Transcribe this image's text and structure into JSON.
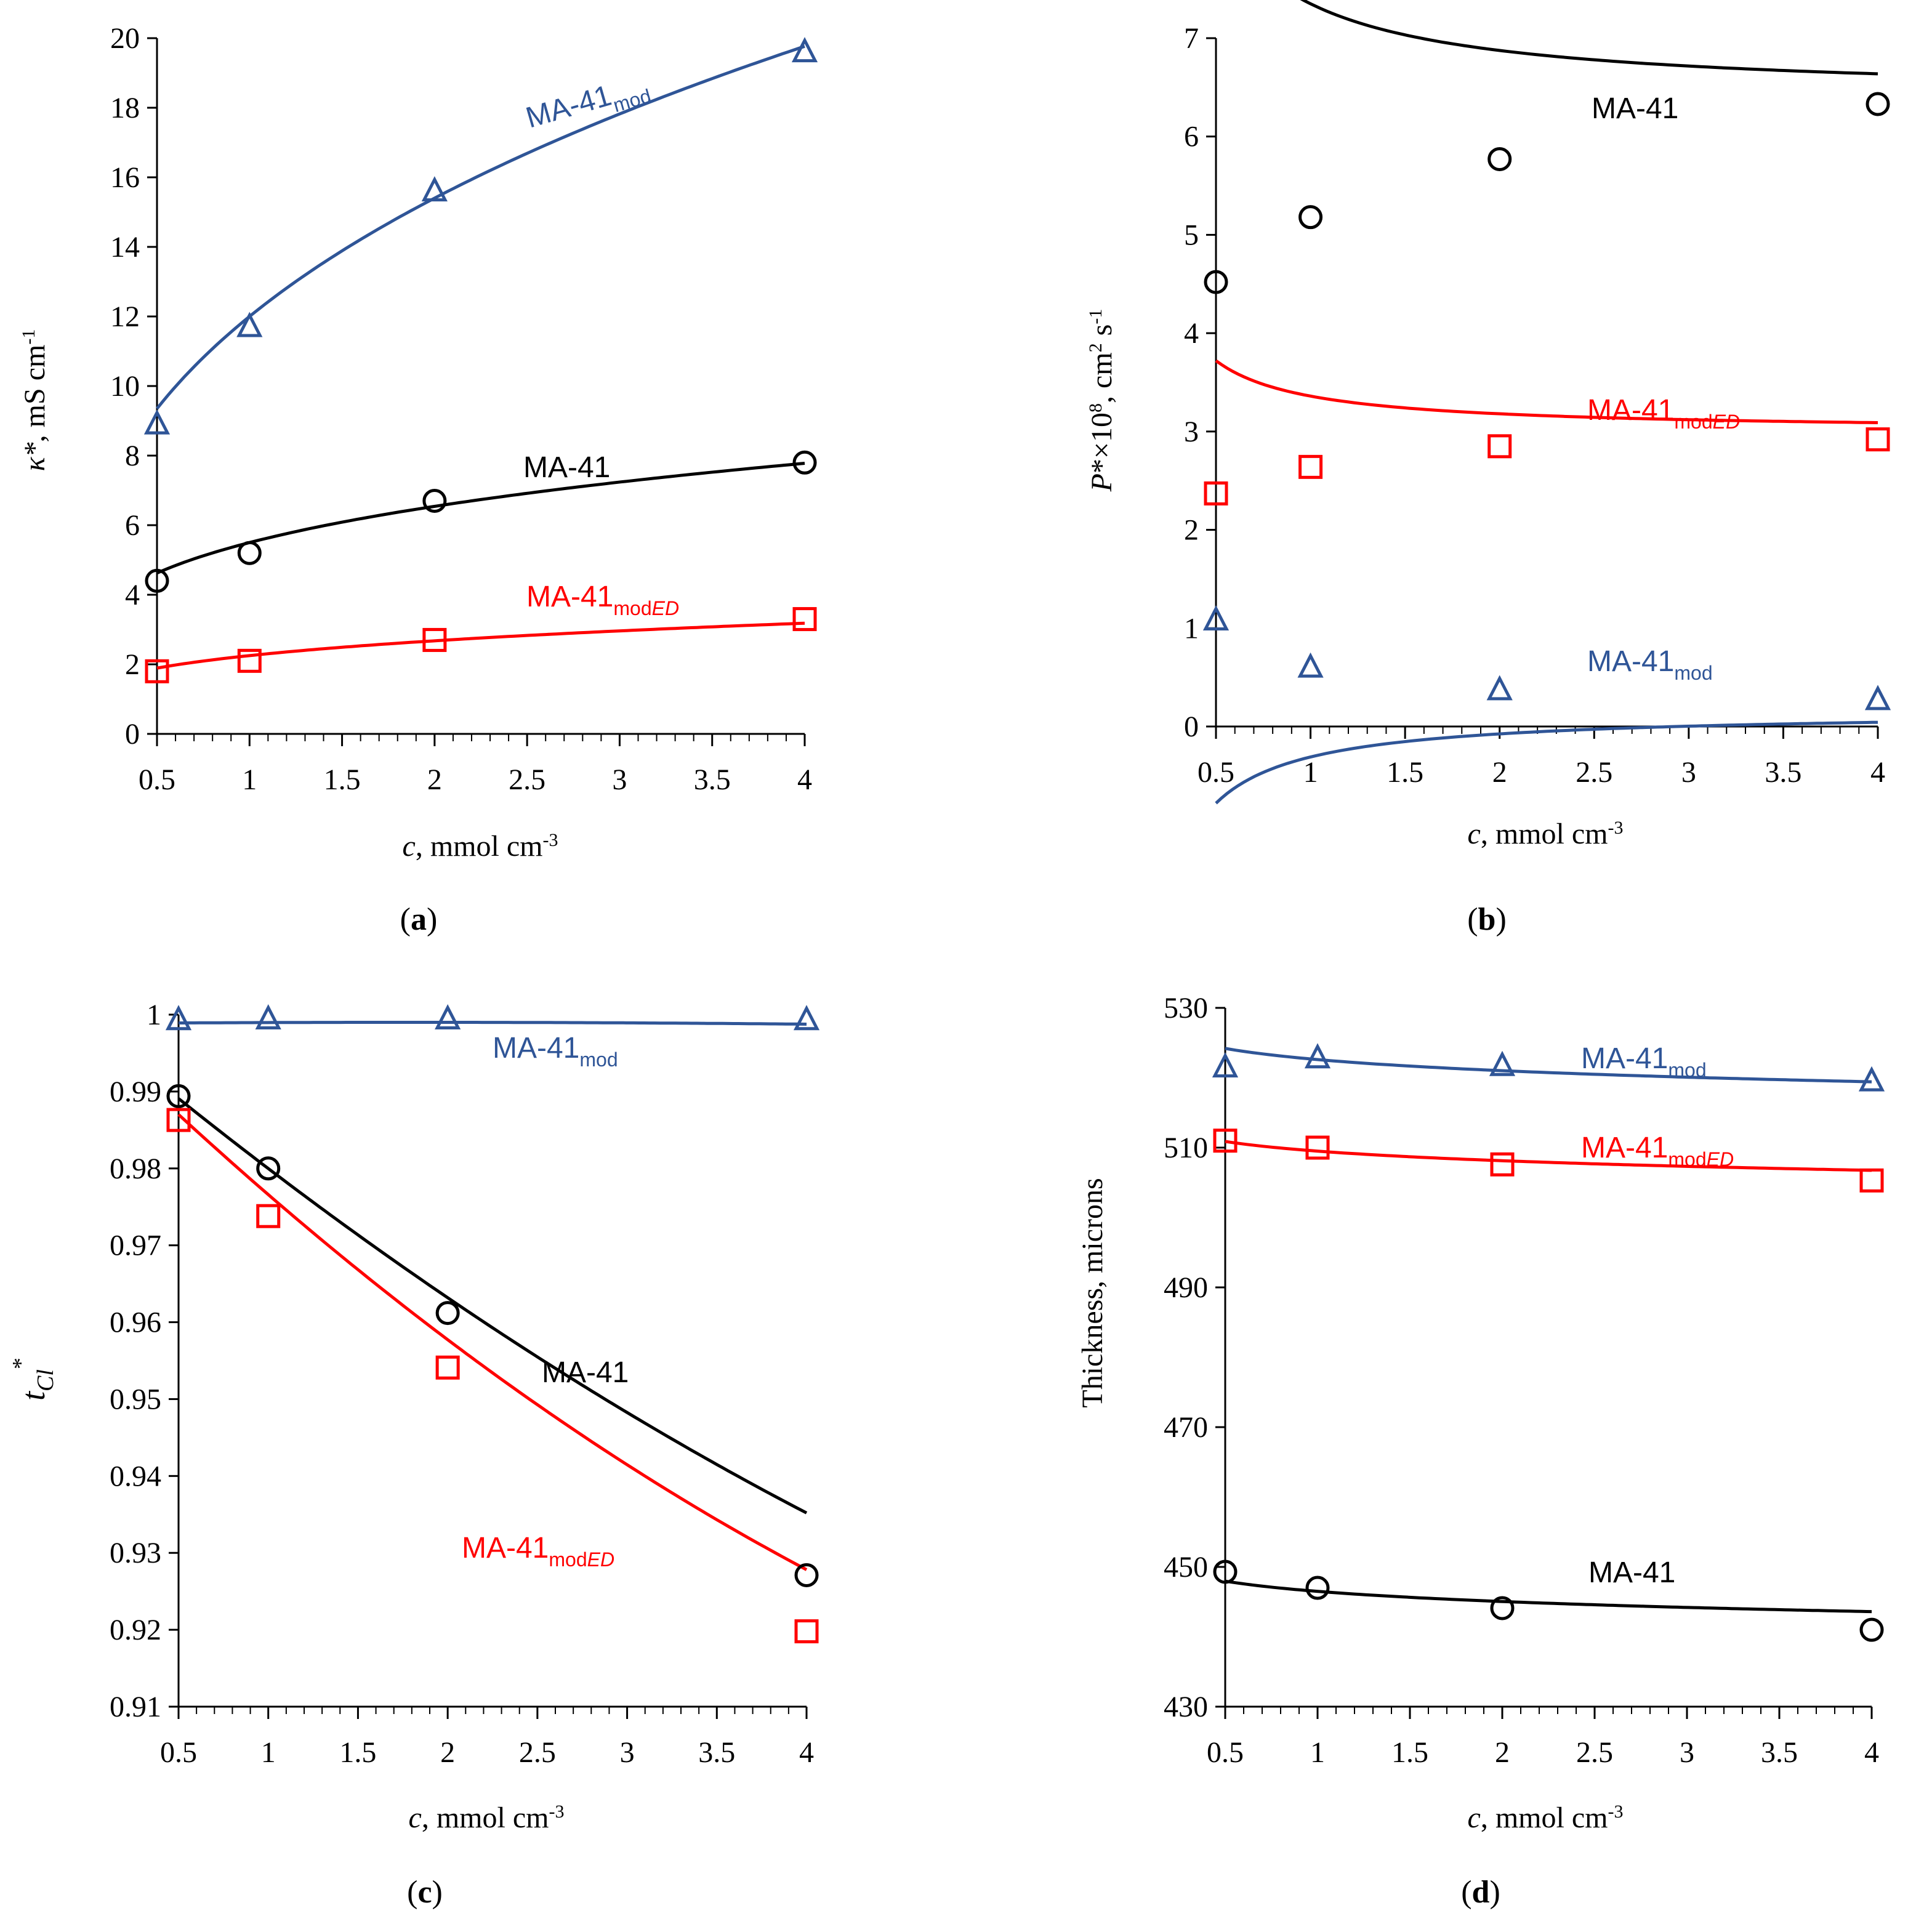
{
  "figure": {
    "series_colors": {
      "MA-41": "#000000",
      "MA-41mod": "#2f5597",
      "MA-41modED": "#ff0000"
    },
    "series_markers": {
      "MA-41": "circle",
      "MA-41mod": "triangle",
      "MA-41modED": "square"
    }
  },
  "chart_data": [
    {
      "panel": "(a)",
      "type": "scatter",
      "xlabel": "c, mmol cm-3",
      "ylabel": "κ*, mS cm-1",
      "xlim": [
        0.5,
        4
      ],
      "ylim": [
        0,
        20
      ],
      "xticks": [
        "0.5",
        "1",
        "1.5",
        "2",
        "2.5",
        "3",
        "3.5",
        "4"
      ],
      "yticks": [
        "0",
        "2",
        "4",
        "6",
        "8",
        "10",
        "12",
        "14",
        "16",
        "18",
        "20"
      ],
      "series": [
        {
          "name": "MA-41mod",
          "label_main": "MA-41",
          "label_sub": "mod",
          "label_sub_italic": "",
          "color": "#2f5597",
          "marker": "triangle",
          "x": [
            0.5,
            1,
            2,
            4
          ],
          "y": [
            8.9,
            11.7,
            15.6,
            19.6
          ],
          "fit": {
            "model": "power",
            "a": 12.0,
            "b": 0.36
          }
        },
        {
          "name": "MA-41",
          "label_main": "MA-41",
          "label_sub": "",
          "label_sub_italic": "",
          "color": "#000000",
          "marker": "circle",
          "x": [
            0.5,
            1,
            2,
            4
          ],
          "y": [
            4.4,
            5.2,
            6.7,
            7.8
          ],
          "fit": {
            "model": "power",
            "a": 5.5,
            "b": 0.25
          }
        },
        {
          "name": "MA-41modED",
          "label_main": "MA-41",
          "label_sub": "mod",
          "label_sub_italic": "ED",
          "color": "#ff0000",
          "marker": "square",
          "x": [
            0.5,
            1,
            2,
            4
          ],
          "y": [
            1.8,
            2.1,
            2.7,
            3.3
          ],
          "fit": {
            "model": "power",
            "a": 2.25,
            "b": 0.25
          }
        }
      ]
    },
    {
      "panel": "(b)",
      "type": "scatter",
      "xlabel": "c, mmol cm-3",
      "ylabel": "P*×108, cm2 s-1",
      "xlim": [
        0.5,
        4
      ],
      "ylim": [
        0,
        7
      ],
      "xticks": [
        "0.5",
        "1",
        "1.5",
        "2",
        "2.5",
        "3",
        "3.5",
        "4"
      ],
      "yticks": [
        "0",
        "1",
        "2",
        "3",
        "4",
        "5",
        "6",
        "7"
      ],
      "series": [
        {
          "name": "MA-41",
          "label_main": "MA-41",
          "label_sub": "",
          "label_sub_italic": "",
          "color": "#000000",
          "marker": "circle",
          "x": [
            0.5,
            1,
            2,
            4
          ],
          "y": [
            4.52,
            5.18,
            5.77,
            6.33
          ],
          "fit": {
            "model": "hyper",
            "A": 6.4,
            "B": 0.95
          }
        },
        {
          "name": "MA-41modED",
          "label_main": "MA-41",
          "label_sub": "mod",
          "label_sub_italic": "ED",
          "color": "#ff0000",
          "marker": "square",
          "x": [
            0.5,
            1,
            2,
            4
          ],
          "y": [
            2.37,
            2.64,
            2.85,
            2.92
          ],
          "fit": {
            "model": "hyper",
            "A": 3.0,
            "B": 0.36
          }
        },
        {
          "name": "MA-41mod",
          "label_main": "MA-41",
          "label_sub": "mod",
          "label_sub_italic": "",
          "color": "#2f5597",
          "marker": "triangle",
          "x": [
            0.5,
            1,
            2,
            4
          ],
          "y": [
            1.08,
            0.6,
            0.37,
            0.27
          ],
          "fit": {
            "model": "hyper",
            "A": 0.16,
            "B": -0.47
          }
        }
      ]
    },
    {
      "panel": "(c)",
      "type": "scatter",
      "xlabel": "c, mmol cm-3",
      "ylabel": "tCl*",
      "xlim": [
        0.5,
        4
      ],
      "ylim": [
        0.91,
        1
      ],
      "xticks": [
        "0.5",
        "1",
        "1.5",
        "2",
        "2.5",
        "3",
        "3.5",
        "4"
      ],
      "yticks": [
        "0.91",
        "0.92",
        "0.93",
        "0.94",
        "0.95",
        "0.96",
        "0.97",
        "0.98",
        "0.99",
        "1"
      ],
      "series": [
        {
          "name": "MA-41mod",
          "label_main": "MA-41",
          "label_sub": "mod",
          "label_sub_italic": "",
          "color": "#2f5597",
          "marker": "triangle",
          "x": [
            0.5,
            1,
            2,
            4
          ],
          "y": [
            0.9993,
            0.9994,
            0.9994,
            0.9993
          ],
          "fit": {
            "model": "quad",
            "c0": 0.99884,
            "c1": 0.00018,
            "c2": -5e-05
          }
        },
        {
          "name": "MA-41",
          "label_main": "MA-41",
          "label_sub": "",
          "label_sub_italic": "",
          "color": "#000000",
          "marker": "circle",
          "x": [
            0.5,
            1,
            2,
            4
          ],
          "y": [
            0.9894,
            0.98,
            0.9612,
            0.9271
          ],
          "fit": {
            "model": "quad",
            "c0": 0.99866,
            "c1": -0.01961,
            "c2": 0.000936
          }
        },
        {
          "name": "MA-41modED",
          "label_main": "MA-41",
          "label_sub": "mod",
          "label_sub_italic": "ED",
          "color": "#ff0000",
          "marker": "square",
          "x": [
            0.5,
            1,
            2,
            4
          ],
          "y": [
            0.9863,
            0.9738,
            0.9541,
            0.9198
          ],
          "fit": {
            "model": "quad",
            "c0": 0.99808,
            "c1": -0.02279,
            "c2": 0.001306
          }
        }
      ]
    },
    {
      "panel": "(d)",
      "type": "scatter",
      "xlabel": "c, mmol cm-3",
      "ylabel": "Thickness, microns",
      "xlim": [
        0.5,
        4
      ],
      "ylim": [
        430,
        530
      ],
      "xticks": [
        "0.5",
        "1",
        "1.5",
        "2",
        "2.5",
        "3",
        "3.5",
        "4"
      ],
      "yticks": [
        "430",
        "450",
        "470",
        "490",
        "510",
        "530"
      ],
      "series": [
        {
          "name": "MA-41mod",
          "label_main": "MA-41",
          "label_sub": "mod",
          "label_sub_italic": "",
          "color": "#2f5597",
          "marker": "triangle",
          "x": [
            0.5,
            1,
            2,
            4
          ],
          "y": [
            521.5,
            522.8,
            521.7,
            519.5
          ],
          "fit": {
            "model": "power",
            "a": 522.6,
            "b": -0.0044
          }
        },
        {
          "name": "MA-41modED",
          "label_main": "MA-41",
          "label_sub": "mod",
          "label_sub_italic": "ED",
          "color": "#ff0000",
          "marker": "square",
          "x": [
            0.5,
            1,
            2,
            4
          ],
          "y": [
            511.0,
            510.0,
            507.6,
            505.3
          ],
          "fit": {
            "model": "power",
            "a": 509.5,
            "b": -0.0039
          }
        },
        {
          "name": "MA-41",
          "label_main": "MA-41",
          "label_sub": "",
          "label_sub_italic": "",
          "color": "#000000",
          "marker": "circle",
          "x": [
            0.5,
            1,
            2,
            4
          ],
          "y": [
            449.3,
            447.0,
            444.1,
            441.0
          ],
          "fit": {
            "model": "power",
            "a": 446.5,
            "b": -0.0047
          }
        }
      ]
    }
  ]
}
